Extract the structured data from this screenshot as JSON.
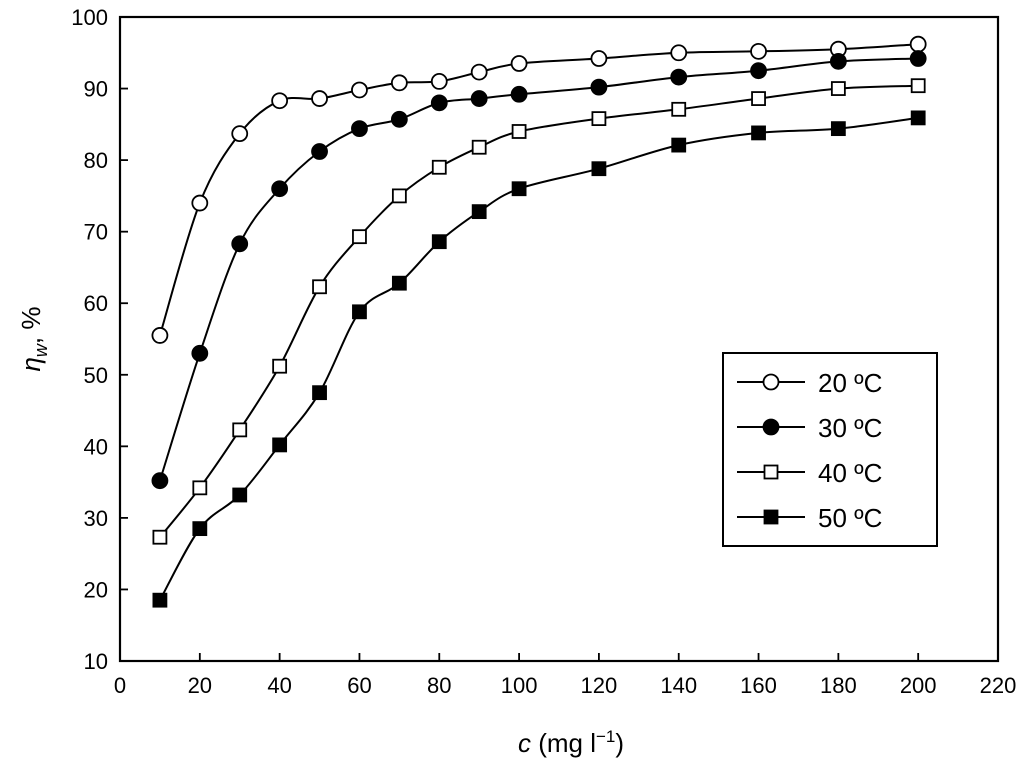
{
  "chart_data": {
    "type": "line",
    "title": "",
    "xlabel": {
      "italic": "c",
      "rest": " (mg l",
      "sup": "−1",
      "close": ")"
    },
    "ylabel": {
      "italic": "η",
      "sub": "w",
      "rest": ", %"
    },
    "xlim": [
      0,
      220
    ],
    "ylim": [
      10,
      100
    ],
    "xticks": [
      "0",
      "20",
      "40",
      "60",
      "80",
      "100",
      "120",
      "140",
      "160",
      "180",
      "200",
      "220"
    ],
    "yticks": [
      "10",
      "20",
      "30",
      "40",
      "50",
      "60",
      "70",
      "80",
      "90",
      "100"
    ],
    "grid": false,
    "legend_position": "center-right",
    "x": [
      10,
      20,
      30,
      40,
      50,
      60,
      70,
      80,
      90,
      100,
      120,
      140,
      160,
      180,
      200
    ],
    "series": [
      {
        "name": "20 ºC",
        "marker": "open-circle",
        "values": [
          55.5,
          74,
          83.7,
          88.3,
          88.6,
          89.8,
          90.8,
          91,
          92.3,
          93.5,
          94.2,
          95,
          95.2,
          95.5,
          96.2
        ]
      },
      {
        "name": "30 ºC",
        "marker": "filled-circle",
        "values": [
          35.2,
          53,
          68.3,
          76,
          81.2,
          84.4,
          85.7,
          88,
          88.6,
          89.2,
          90.2,
          91.6,
          92.5,
          93.8,
          94.2
        ]
      },
      {
        "name": "40 ºC",
        "marker": "open-square",
        "values": [
          27.3,
          34.2,
          42.3,
          51.2,
          62.3,
          69.3,
          75,
          79,
          81.8,
          84,
          85.8,
          87.1,
          88.6,
          90,
          90.4
        ]
      },
      {
        "name": "50 ºC",
        "marker": "filled-square",
        "values": [
          18.5,
          28.5,
          33.2,
          40.2,
          47.5,
          58.8,
          62.8,
          68.6,
          72.8,
          76,
          78.8,
          82.1,
          83.8,
          84.4,
          85.9
        ]
      }
    ]
  }
}
